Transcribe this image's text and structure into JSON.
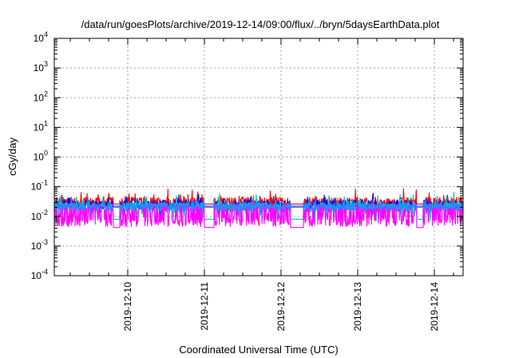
{
  "chart_data": {
    "type": "line",
    "title": "/data/run/goesPlots/archive/2019-12-14/09:00/flux/../bryn/5daysEarthData.plot",
    "xlabel": "Coordinated Universal Time (UTC)",
    "ylabel": "cGy/day",
    "yscale": "log",
    "ylim": [
      0.0001,
      10000
    ],
    "xlim": [
      "2019-12-09T01:00",
      "2019-12-14T09:00"
    ],
    "grid": true,
    "legend": "none",
    "x_ticks": [
      {
        "label": "2019-12-10",
        "value": "2019-12-10T00:00"
      },
      {
        "label": "2019-12-11",
        "value": "2019-12-11T00:00"
      },
      {
        "label": "2019-12-12",
        "value": "2019-12-12T00:00"
      },
      {
        "label": "2019-12-13",
        "value": "2019-12-13T00:00"
      },
      {
        "label": "2019-12-14",
        "value": "2019-12-14T00:00"
      }
    ],
    "y_ticks": [
      {
        "base": "10",
        "exp": "4",
        "value": 10000
      },
      {
        "base": "10",
        "exp": "3",
        "value": 1000
      },
      {
        "base": "10",
        "exp": "2",
        "value": 100
      },
      {
        "base": "10",
        "exp": "1",
        "value": 10
      },
      {
        "base": "10",
        "exp": "0",
        "value": 1
      },
      {
        "base": "10",
        "exp": "-1",
        "value": 0.1
      },
      {
        "base": "10",
        "exp": "-2",
        "value": 0.01
      },
      {
        "base": "10",
        "exp": "-3",
        "value": 0.001
      },
      {
        "base": "10",
        "exp": "-4",
        "value": 0.0001
      }
    ],
    "series": [
      {
        "color": "#ff0000",
        "base": 0.03,
        "noise": 0.35,
        "spike": 0.55,
        "spike_prob": 0.12,
        "gap_value": 0.026
      },
      {
        "color": "#0000ff",
        "base": 0.025,
        "noise": 0.3,
        "spike": 0.45,
        "spike_prob": 0.1,
        "gap_value": 0.022
      },
      {
        "color": "#00c0c0",
        "base": 0.02,
        "noise": 0.35,
        "spike": 0.7,
        "spike_prob": 0.15,
        "gap_value": 0.008
      },
      {
        "color": "#ff00ff",
        "base": 0.006,
        "noise": 0.25,
        "spike": 2.7,
        "spike_prob": 0.45,
        "gap_value": 0.0042
      },
      {
        "color": "#1e90ff",
        "base": 0.022,
        "noise": 0.25,
        "spike": 0.5,
        "spike_prob": 0.1,
        "gap_value": 0.02
      }
    ],
    "gaps": [
      [
        "2019-12-09T19:30",
        "2019-12-09T21:30"
      ],
      [
        "2019-12-11T00:00",
        "2019-12-11T03:00"
      ],
      [
        "2019-12-12T03:00",
        "2019-12-12T07:00"
      ],
      [
        "2019-12-13T18:30",
        "2019-12-13T20:30"
      ]
    ]
  }
}
